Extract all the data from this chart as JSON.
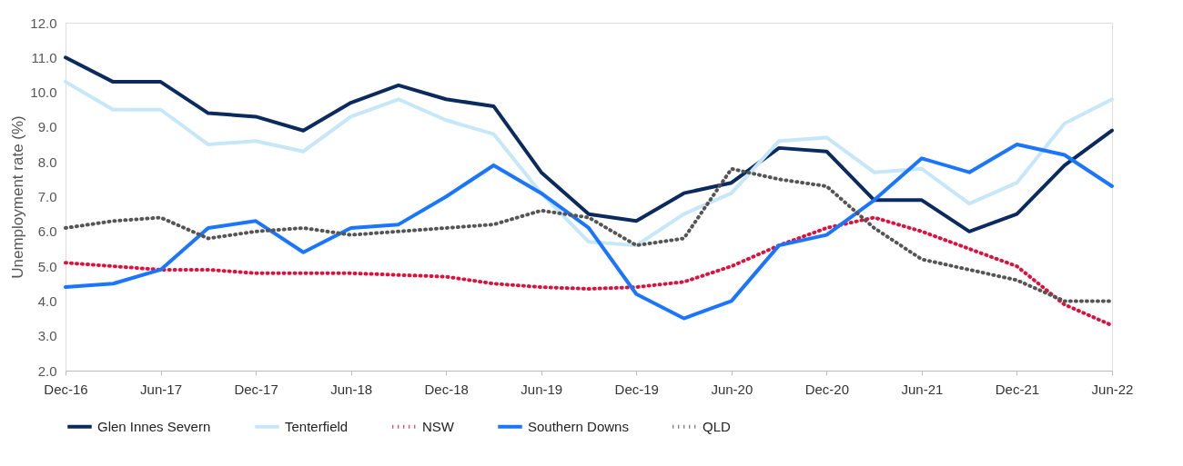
{
  "chart_data": {
    "type": "line",
    "ylabel": "Unemployment rate (%)",
    "categories": [
      "Dec-16",
      null,
      "Jun-17",
      null,
      "Dec-17",
      null,
      "Jun-18",
      null,
      "Dec-18",
      null,
      "Jun-19",
      null,
      "Dec-19",
      null,
      "Jun-20",
      null,
      "Dec-20",
      null,
      "Jun-21",
      null,
      "Dec-21",
      null,
      "Jun-22"
    ],
    "ylim": [
      2,
      12
    ],
    "yticks": [
      {
        "value": 2,
        "label": "2.0"
      },
      {
        "value": 3,
        "label": "3.0"
      },
      {
        "value": 4,
        "label": "4.0"
      },
      {
        "value": 5,
        "label": "5.0"
      },
      {
        "value": 6,
        "label": "6.0"
      },
      {
        "value": 7,
        "label": "7.0"
      },
      {
        "value": 8,
        "label": "8.0"
      },
      {
        "value": 9,
        "label": "9.0"
      },
      {
        "value": 10,
        "label": "10.0"
      },
      {
        "value": 11,
        "label": "11.0"
      },
      {
        "value": 12,
        "label": "12.0"
      }
    ],
    "grid": false,
    "legend": "bottom",
    "marker": "none",
    "series": [
      {
        "name": "Glen Innes Severn",
        "color": "#0b2a5e",
        "line_style": "solid",
        "values": [
          11.0,
          10.3,
          10.3,
          9.4,
          9.3,
          8.9,
          9.7,
          10.2,
          9.8,
          9.6,
          7.7,
          6.5,
          6.3,
          7.1,
          7.4,
          8.4,
          8.3,
          6.9,
          6.9,
          6.0,
          6.5,
          7.9,
          8.9
        ]
      },
      {
        "name": "Tenterfield",
        "color": "#c6e7f8",
        "line_style": "solid",
        "values": [
          10.3,
          9.5,
          9.5,
          8.5,
          8.6,
          8.3,
          9.3,
          9.8,
          9.2,
          8.8,
          7.1,
          5.7,
          5.6,
          6.5,
          7.1,
          8.6,
          8.7,
          7.7,
          7.8,
          6.8,
          7.4,
          9.1,
          9.8
        ]
      },
      {
        "name": "NSW",
        "color": "#e0103c",
        "line_style": "dotted",
        "values": [
          5.1,
          5.0,
          4.9,
          4.9,
          4.8,
          4.8,
          4.8,
          4.75,
          4.7,
          4.5,
          4.4,
          4.35,
          4.4,
          4.55,
          5.0,
          5.6,
          6.1,
          6.4,
          6.0,
          5.5,
          5.0,
          3.9,
          3.3
        ]
      },
      {
        "name": "Southern Downs",
        "color": "#1a75ff",
        "line_style": "solid",
        "values": [
          4.4,
          4.5,
          4.9,
          6.1,
          6.3,
          5.4,
          6.1,
          6.2,
          7.0,
          7.9,
          7.1,
          6.1,
          4.2,
          3.5,
          4.0,
          5.6,
          5.9,
          6.9,
          8.1,
          7.7,
          8.5,
          8.2,
          7.3
        ]
      },
      {
        "name": "QLD",
        "color": "#555555",
        "line_style": "dotted",
        "values": [
          6.1,
          6.3,
          6.4,
          5.8,
          6.0,
          6.1,
          5.9,
          6.0,
          6.1,
          6.2,
          6.6,
          6.4,
          5.6,
          5.8,
          7.8,
          7.5,
          7.3,
          6.1,
          5.2,
          4.9,
          4.6,
          4.0,
          4.0
        ]
      }
    ]
  }
}
